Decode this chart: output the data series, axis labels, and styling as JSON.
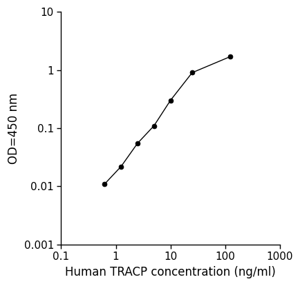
{
  "x_data": [
    0.625,
    1.25,
    2.5,
    5,
    10,
    25,
    125
  ],
  "y_data": [
    0.011,
    0.022,
    0.055,
    0.11,
    0.3,
    0.9,
    1.7
  ],
  "line_color": "#000000",
  "marker_color": "#000000",
  "marker_size": 5,
  "line_width": 1.0,
  "xlabel": "Human TRACP concentration (ng/ml)",
  "ylabel": "OD=450 nm",
  "xlabel_color": "#000000",
  "ylabel_color": "#000000",
  "xlim": [
    0.1,
    1000
  ],
  "ylim": [
    0.001,
    10
  ],
  "xtick_vals": [
    0.1,
    1,
    10,
    100,
    1000
  ],
  "xtick_labels": [
    "0.1",
    "1",
    "10",
    "100",
    "1000"
  ],
  "ytick_vals": [
    0.001,
    0.01,
    0.1,
    1,
    10
  ],
  "ytick_labels": [
    "0.001",
    "0.01",
    "0.1",
    "1",
    "10"
  ],
  "xlabel_fontsize": 12,
  "ylabel_fontsize": 12,
  "tick_fontsize": 11,
  "background_color": "#ffffff",
  "font_family": "Arial"
}
